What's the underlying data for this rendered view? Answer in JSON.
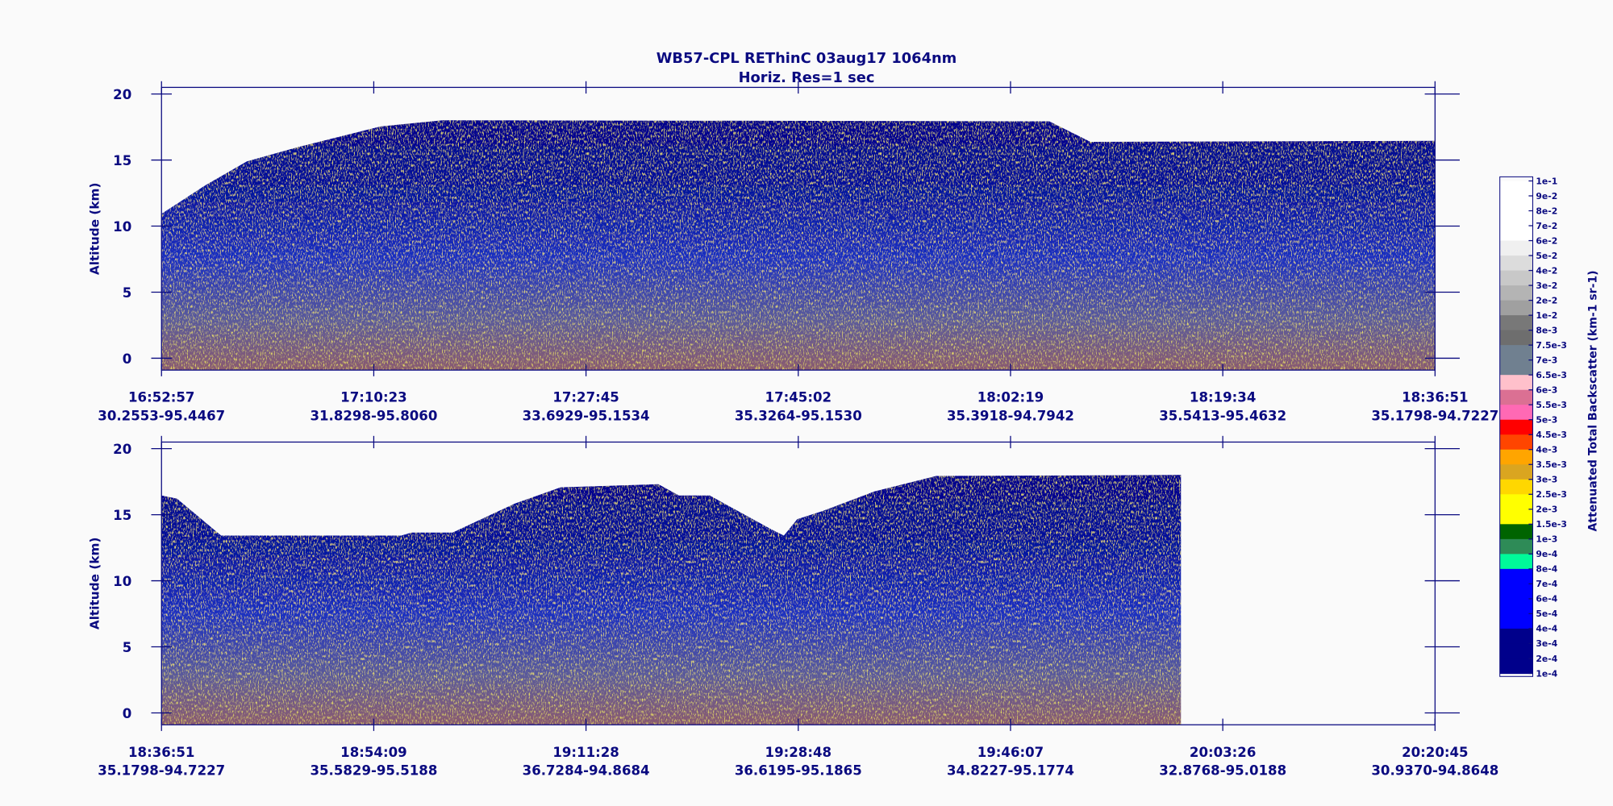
{
  "chart_data": {
    "type": "lidar-curtain",
    "title": "WB57-CPL  REThinC  03aug17  1064nm",
    "subtitle": "Horiz. Res=1 sec",
    "panels": [
      {
        "ylabel": "Altitude (km)",
        "ylim": [
          -0.9,
          20.5
        ],
        "yticks": [
          0,
          5,
          10,
          15,
          20
        ],
        "xticks": [
          {
            "time": "16:52:57",
            "position": "30.2553-95.4467"
          },
          {
            "time": "17:10:23",
            "position": "31.8298-95.8060"
          },
          {
            "time": "17:27:45",
            "position": "33.6929-95.1534"
          },
          {
            "time": "17:45:02",
            "position": "35.3264-95.1530"
          },
          {
            "time": "18:02:19",
            "position": "35.3918-94.7942"
          },
          {
            "time": "18:19:34",
            "position": "35.5413-95.4632"
          },
          {
            "time": "18:36:51",
            "position": "35.1798-94.7227"
          }
        ]
      },
      {
        "ylabel": "Altitude (km)",
        "ylim": [
          -0.9,
          20.5
        ],
        "yticks": [
          0,
          5,
          10,
          15,
          20
        ],
        "xticks": [
          {
            "time": "18:36:51",
            "position": "35.1798-94.7227"
          },
          {
            "time": "18:54:09",
            "position": "35.5829-95.5188"
          },
          {
            "time": "19:11:28",
            "position": "36.7284-94.8684"
          },
          {
            "time": "19:28:48",
            "position": "36.6195-95.1865"
          },
          {
            "time": "19:46:07",
            "position": "34.8227-95.1774"
          },
          {
            "time": "20:03:26",
            "position": "32.8768-95.0188"
          },
          {
            "time": "20:20:45",
            "position": "30.9370-94.8648"
          }
        ]
      }
    ],
    "colorbar": {
      "label": "Attenuated Total Backscatter (km-1 sr-1)",
      "levels": [
        "1e-1",
        "9e-2",
        "8e-2",
        "7e-2",
        "6e-2",
        "5e-2",
        "4e-2",
        "3e-2",
        "2e-2",
        "1e-2",
        "8e-3",
        "7.5e-3",
        "7e-3",
        "6.5e-3",
        "6e-3",
        "5.5e-3",
        "5e-3",
        "4.5e-3",
        "4e-3",
        "3.5e-3",
        "3e-3",
        "2.5e-3",
        "2e-3",
        "1.5e-3",
        "1e-3",
        "9e-4",
        "8e-4",
        "7e-4",
        "6e-4",
        "5e-4",
        "4e-4",
        "3e-4",
        "2e-4",
        "1e-4"
      ],
      "colors": [
        "#ffffff",
        "#ffffff",
        "#ffffff",
        "#ffffff",
        "#f0f0f0",
        "#dcdcdc",
        "#c8c8c8",
        "#b4b4b4",
        "#a0a0a0",
        "#787878",
        "#6e6e6e",
        "#708090",
        "#708090",
        "#ffc0cb",
        "#db7093",
        "#ff69b4",
        "#ff0000",
        "#ff4500",
        "#ffa500",
        "#daa520",
        "#ffd700",
        "#ffff00",
        "#ffff00",
        "#006400",
        "#2e8b57",
        "#00fa9a",
        "#0000ff",
        "#0000ff",
        "#0000ff",
        "#0000ff",
        "#00008b",
        "#00008b",
        "#00008b"
      ]
    }
  }
}
